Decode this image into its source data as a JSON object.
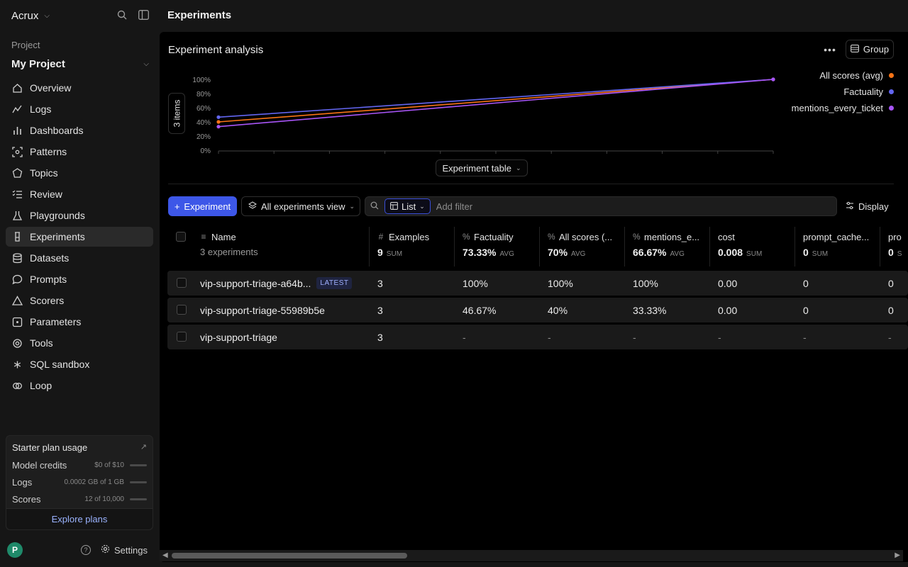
{
  "sidebar": {
    "org_name": "Acrux",
    "project_label": "Project",
    "project_name": "My Project",
    "items": [
      {
        "label": "Overview",
        "icon": "home-icon"
      },
      {
        "label": "Logs",
        "icon": "activity-icon"
      },
      {
        "label": "Dashboards",
        "icon": "bar-chart-icon"
      },
      {
        "label": "Patterns",
        "icon": "scan-icon"
      },
      {
        "label": "Topics",
        "icon": "hexagon-icon"
      },
      {
        "label": "Review",
        "icon": "list-check-icon"
      },
      {
        "label": "Playgrounds",
        "icon": "flask-icon"
      },
      {
        "label": "Experiments",
        "icon": "beaker-icon",
        "active": true
      },
      {
        "label": "Datasets",
        "icon": "database-icon"
      },
      {
        "label": "Prompts",
        "icon": "message-icon"
      },
      {
        "label": "Scorers",
        "icon": "triangle-icon"
      },
      {
        "label": "Parameters",
        "icon": "square-dot-icon"
      },
      {
        "label": "Tools",
        "icon": "tool-icon"
      },
      {
        "label": "SQL sandbox",
        "icon": "asterisk-icon"
      },
      {
        "label": "Loop",
        "icon": "loop-icon"
      }
    ],
    "plan": {
      "title": "Starter plan usage",
      "rows": [
        {
          "label": "Model credits",
          "value": "$0 of $10"
        },
        {
          "label": "Logs",
          "value": "0.0002 GB of 1 GB"
        },
        {
          "label": "Scores",
          "value": "12 of 10,000"
        }
      ],
      "cta": "Explore plans"
    },
    "avatar": "P",
    "settings_label": "Settings"
  },
  "page": {
    "title": "Experiments"
  },
  "analysis": {
    "title": "Experiment analysis",
    "group_label": "Group",
    "items_tag": "3 items",
    "table_toggle": "Experiment table"
  },
  "chart_data": {
    "type": "line",
    "x": [
      1,
      2
    ],
    "yticks": [
      "100%",
      "80%",
      "60%",
      "40%",
      "20%",
      "0%"
    ],
    "ylim": [
      0,
      100
    ],
    "series": [
      {
        "name": "All scores (avg)",
        "color": "#f97316",
        "values": [
          40,
          100
        ]
      },
      {
        "name": "Factuality",
        "color": "#6366f1",
        "values": [
          46.67,
          100
        ]
      },
      {
        "name": "mentions_every_ticket",
        "color": "#a855f7",
        "values": [
          33.33,
          100
        ]
      }
    ],
    "legend": "top-right"
  },
  "toolbar": {
    "new_experiment": "Experiment",
    "view": "All experiments view",
    "list": "List",
    "filter_placeholder": "Add filter",
    "display": "Display"
  },
  "table": {
    "columns": [
      {
        "label": "Name",
        "sub": "3 experiments"
      },
      {
        "label": "Examples",
        "summary": "9",
        "agg": "SUM"
      },
      {
        "label": "Factuality",
        "summary": "73.33%",
        "agg": "AVG"
      },
      {
        "label": "All scores (...",
        "summary": "70%",
        "agg": "AVG"
      },
      {
        "label": "mentions_e...",
        "summary": "66.67%",
        "agg": "AVG"
      },
      {
        "label": "cost",
        "summary": "0.008",
        "agg": "SUM"
      },
      {
        "label": "prompt_cache...",
        "summary": "0",
        "agg": "SUM"
      },
      {
        "label": "pro",
        "summary": "0",
        "agg": "S"
      }
    ],
    "rows": [
      {
        "name": "vip-support-triage-a64b...",
        "badge": "LATEST",
        "cells": [
          "3",
          "100%",
          "100%",
          "100%",
          "0.00",
          "0",
          "0"
        ]
      },
      {
        "name": "vip-support-triage-55989b5e",
        "badge": "",
        "cells": [
          "3",
          "46.67%",
          "40%",
          "33.33%",
          "0.00",
          "0",
          "0"
        ]
      },
      {
        "name": "vip-support-triage",
        "badge": "",
        "cells": [
          "3",
          "-",
          "-",
          "-",
          "-",
          "-",
          "-"
        ]
      }
    ]
  }
}
